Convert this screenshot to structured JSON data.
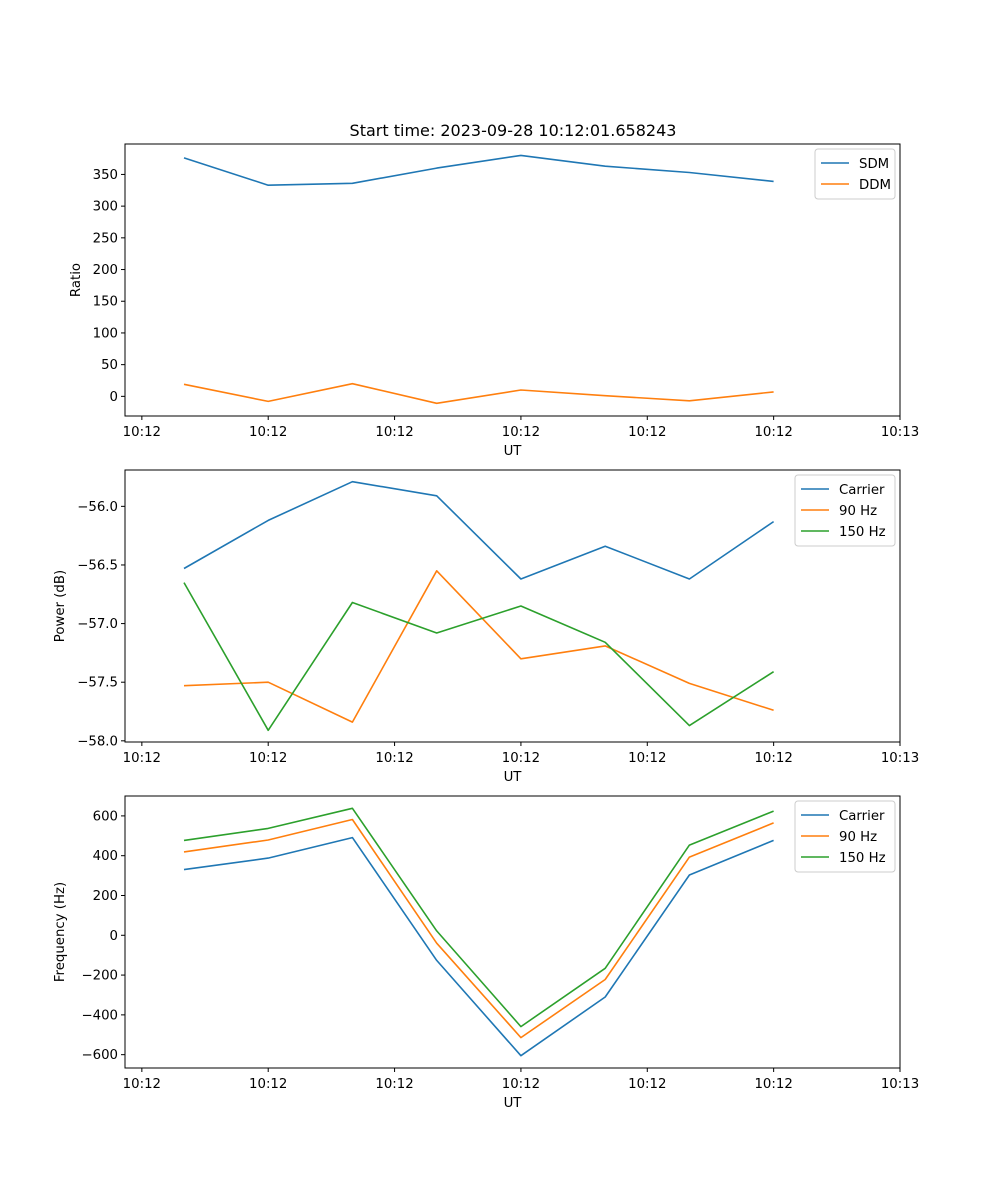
{
  "figure": {
    "title": "Start time: 2023-09-28 10:12:01.658243"
  },
  "chart_data": [
    {
      "type": "line",
      "title": "Start time: 2023-09-28 10:12:01.658243",
      "xlabel": "UT",
      "ylabel": "Ratio",
      "x_index": [
        0,
        1,
        2,
        3,
        4,
        5,
        6,
        7
      ],
      "x_ticks": [
        "10:12",
        "10:12",
        "10:12",
        "10:12",
        "10:12",
        "10:12",
        "10:13"
      ],
      "xlim": [
        -0.7,
        8.5
      ],
      "ylim": [
        -31,
        398
      ],
      "y_ticks": [
        0,
        50,
        100,
        150,
        200,
        250,
        300,
        350
      ],
      "y_tick_labels": [
        "0",
        "50",
        "100",
        "150",
        "200",
        "250",
        "300",
        "350"
      ],
      "legend": "top-right",
      "grid": false,
      "series": [
        {
          "name": "SDM",
          "color": "#1f77b4",
          "values": [
            376,
            333,
            336,
            360,
            380,
            363,
            353,
            339
          ]
        },
        {
          "name": "DDM",
          "color": "#ff7f0e",
          "values": [
            19,
            -8,
            20,
            -11,
            10,
            1,
            -7,
            7
          ]
        }
      ]
    },
    {
      "type": "line",
      "title": "",
      "xlabel": "UT",
      "ylabel": "Power (dB)",
      "x_index": [
        0,
        1,
        2,
        3,
        4,
        5,
        6,
        7
      ],
      "x_ticks": [
        "10:12",
        "10:12",
        "10:12",
        "10:12",
        "10:12",
        "10:12",
        "10:13"
      ],
      "xlim": [
        -0.7,
        8.5
      ],
      "ylim": [
        -58.01,
        -55.69
      ],
      "y_ticks": [
        -58.0,
        -57.5,
        -57.0,
        -56.5,
        -56.0
      ],
      "y_tick_labels": [
        "−58.0",
        "−57.5",
        "−57.0",
        "−56.5",
        "−56.0"
      ],
      "legend": "top-right",
      "grid": false,
      "series": [
        {
          "name": "Carrier",
          "color": "#1f77b4",
          "values": [
            -56.53,
            -56.12,
            -55.79,
            -55.91,
            -56.62,
            -56.34,
            -56.62,
            -56.13
          ]
        },
        {
          "name": "90 Hz",
          "color": "#ff7f0e",
          "values": [
            -57.53,
            -57.5,
            -57.84,
            -56.55,
            -57.3,
            -57.19,
            -57.51,
            -57.74
          ]
        },
        {
          "name": "150 Hz",
          "color": "#2ca02c",
          "values": [
            -56.65,
            -57.91,
            -56.82,
            -57.08,
            -56.85,
            -57.16,
            -57.87,
            -57.41
          ]
        }
      ]
    },
    {
      "type": "line",
      "title": "",
      "xlabel": "UT",
      "ylabel": "Frequency (Hz)",
      "x_index": [
        0,
        1,
        2,
        3,
        4,
        5,
        6,
        7
      ],
      "x_ticks": [
        "10:12",
        "10:12",
        "10:12",
        "10:12",
        "10:12",
        "10:12",
        "10:13"
      ],
      "xlim": [
        -0.7,
        8.5
      ],
      "ylim": [
        -667,
        700
      ],
      "y_ticks": [
        -600,
        -400,
        -200,
        0,
        200,
        400,
        600
      ],
      "y_tick_labels": [
        "−600",
        "−400",
        "−200",
        "0",
        "200",
        "400",
        "600"
      ],
      "legend": "top-right",
      "grid": false,
      "series": [
        {
          "name": "Carrier",
          "color": "#1f77b4",
          "values": [
            330,
            388,
            491,
            -126,
            -605,
            -310,
            303,
            477
          ]
        },
        {
          "name": "90 Hz",
          "color": "#ff7f0e",
          "values": [
            419,
            479,
            582,
            -40,
            -514,
            -222,
            393,
            565
          ]
        },
        {
          "name": "150 Hz",
          "color": "#2ca02c",
          "values": [
            477,
            537,
            638,
            22,
            -459,
            -166,
            453,
            624
          ]
        }
      ]
    }
  ]
}
